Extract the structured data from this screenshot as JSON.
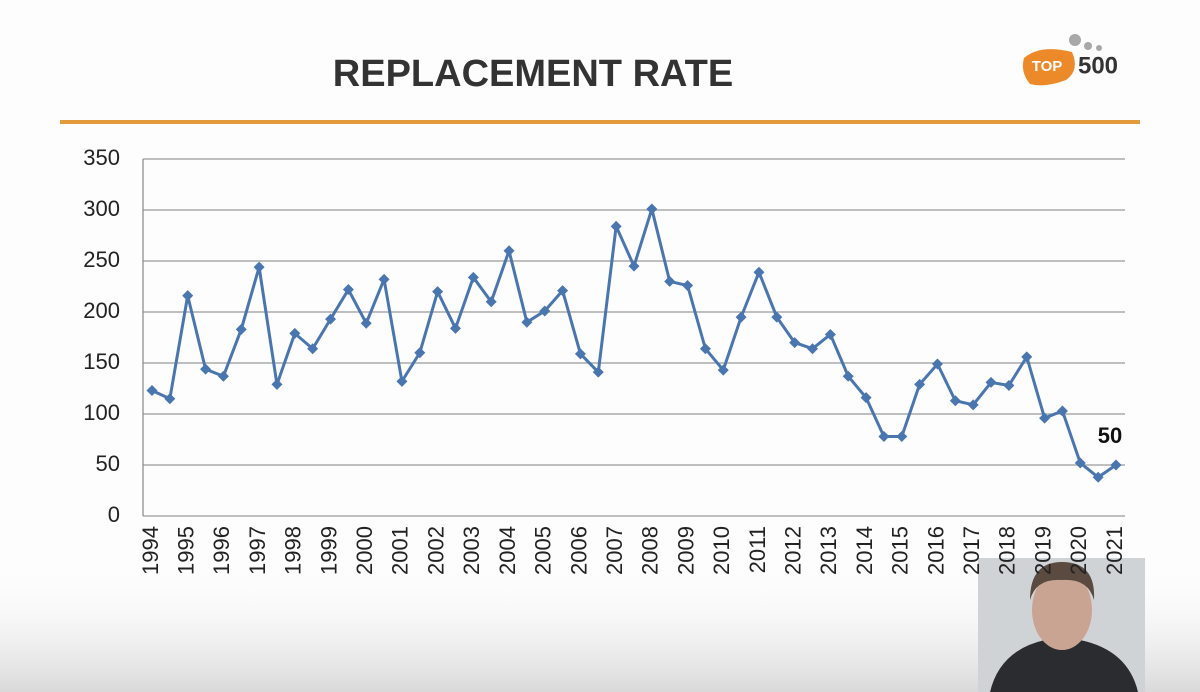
{
  "chart_data": {
    "type": "line",
    "title": "REPLACEMENT RATE",
    "categories": [
      "1994",
      null,
      "1995",
      null,
      "1996",
      null,
      "1997",
      null,
      "1998",
      null,
      "1999",
      null,
      "2000",
      null,
      "2001",
      null,
      "2002",
      null,
      "2003",
      null,
      "2004",
      null,
      "2005",
      null,
      "2006",
      null,
      "2007",
      null,
      "2008",
      null,
      "2009",
      null,
      "2010",
      null,
      "2011",
      null,
      "2012",
      null,
      "2013",
      null,
      "2014",
      null,
      "2015",
      null,
      "2016",
      null,
      "2017",
      null,
      "2018",
      null,
      "2019",
      null,
      "2020",
      null,
      "2021"
    ],
    "values": [
      123,
      115,
      216,
      144,
      137,
      183,
      244,
      129,
      179,
      164,
      193,
      222,
      189,
      232,
      132,
      160,
      220,
      184,
      234,
      210,
      260,
      190,
      201,
      221,
      159,
      141,
      284,
      245,
      301,
      230,
      226,
      164,
      143,
      195,
      239,
      195,
      170,
      164,
      178,
      137,
      116,
      78,
      78,
      129,
      149,
      113,
      109,
      131,
      128,
      156,
      96,
      103,
      52,
      38,
      50
    ],
    "value_labels": [
      null,
      null,
      null,
      null,
      null,
      null,
      null,
      null,
      null,
      null,
      null,
      null,
      null,
      null,
      null,
      null,
      null,
      null,
      null,
      null,
      null,
      null,
      null,
      null,
      null,
      null,
      null,
      null,
      null,
      null,
      null,
      null,
      null,
      null,
      null,
      null,
      null,
      null,
      null,
      null,
      null,
      null,
      null,
      null,
      null,
      null,
      null,
      null,
      null,
      null,
      null,
      null,
      null,
      null,
      "50"
    ],
    "color": "#4a76b0",
    "ylim": [
      0,
      350
    ],
    "yticks": [
      0,
      50,
      100,
      150,
      200,
      250,
      300,
      350
    ],
    "grid": true
  },
  "logo": {
    "left": "TOP",
    "right": "500"
  }
}
